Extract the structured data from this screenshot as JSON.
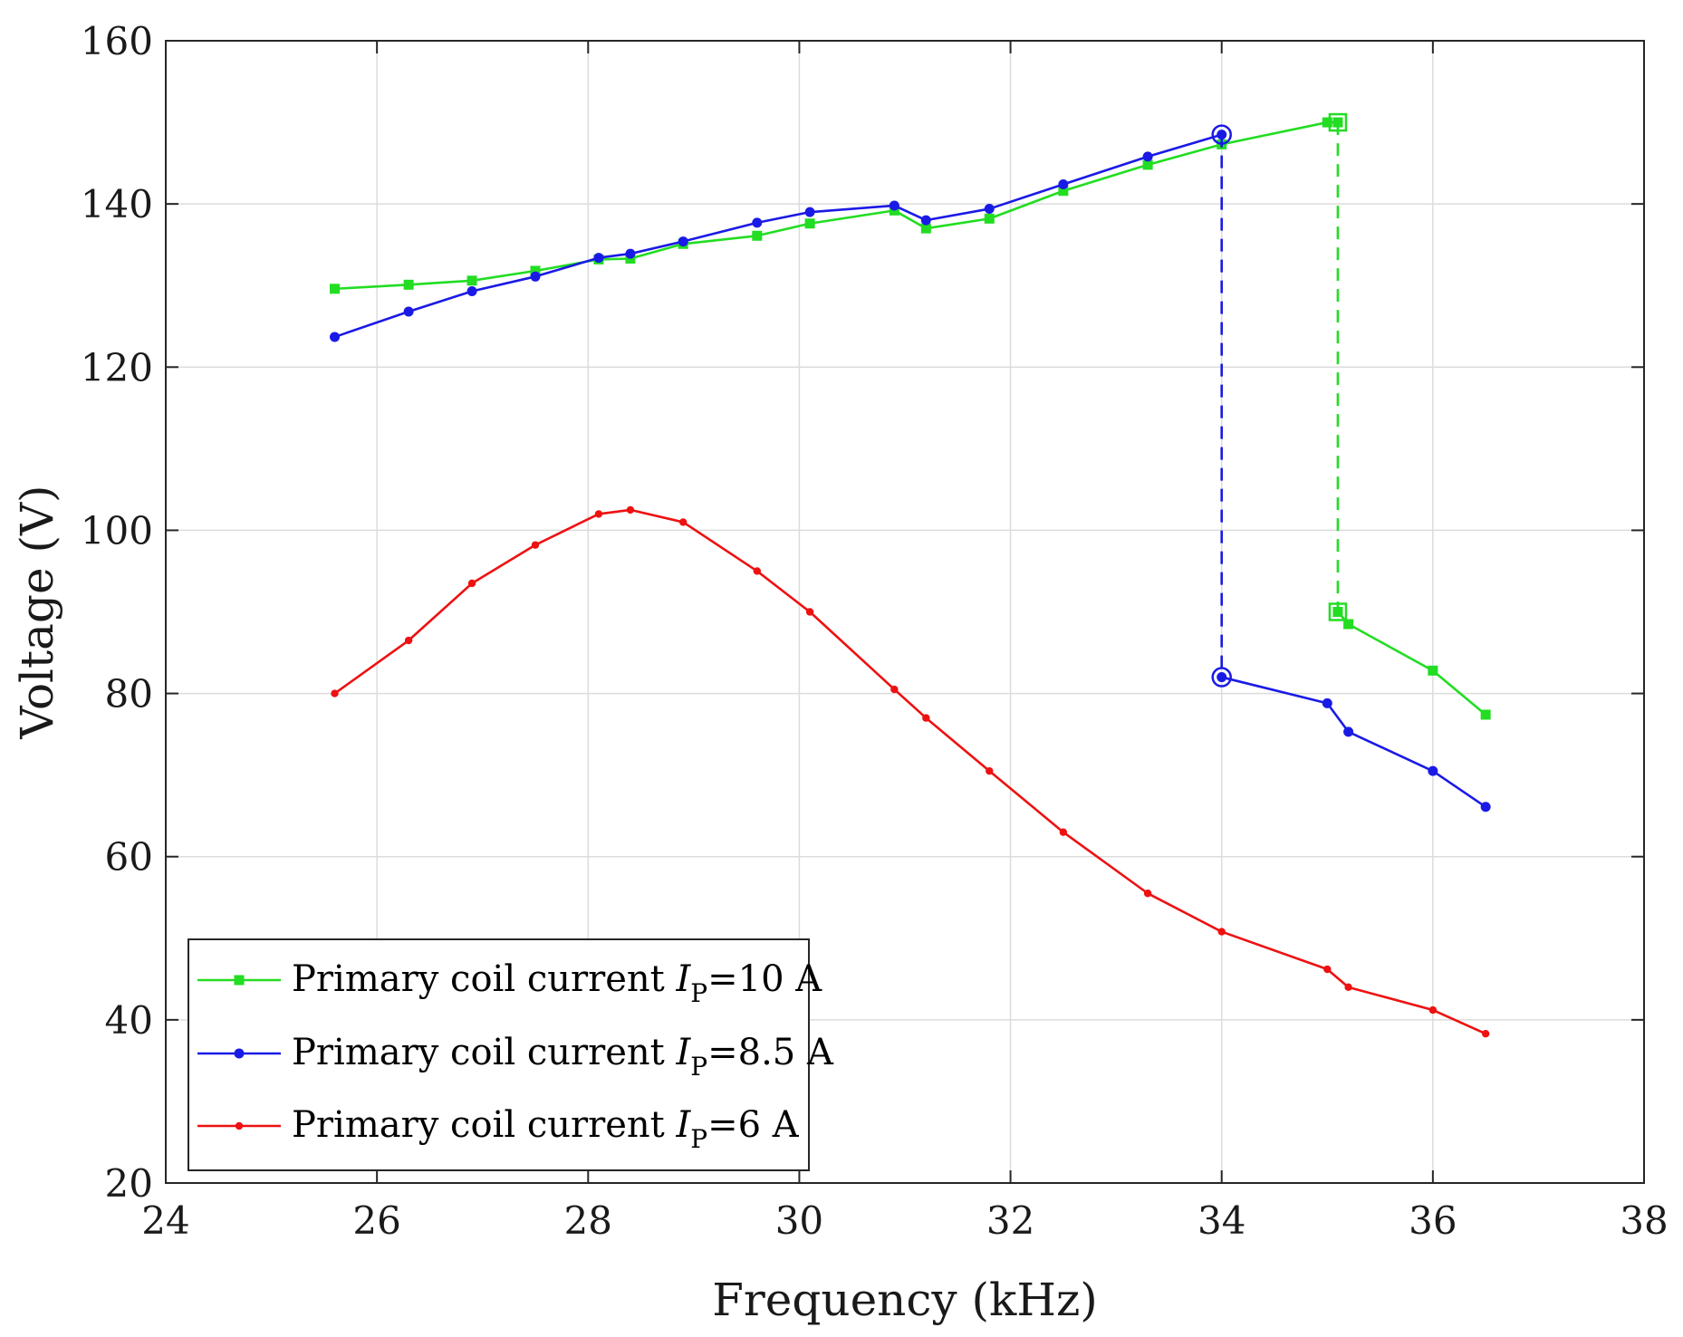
{
  "chart_data": {
    "type": "line",
    "title": "",
    "xlabel": "Frequency (kHz)",
    "ylabel": "Voltage (V)",
    "xlim": [
      24,
      38
    ],
    "ylim": [
      20,
      160
    ],
    "xticks": [
      24,
      26,
      28,
      30,
      32,
      34,
      36,
      38
    ],
    "yticks": [
      20,
      40,
      60,
      80,
      100,
      120,
      140,
      160
    ],
    "grid": true,
    "legend_position": "bottom-left",
    "series": [
      {
        "name": "Primary coil current IP=10 A",
        "legend_prefix": "Primary coil current ",
        "legend_symbol": "I",
        "legend_sub": "P",
        "legend_suffix": "=10 A",
        "color": "#22dd22",
        "marker": "square",
        "x": [
          25.6,
          26.3,
          26.9,
          27.5,
          28.1,
          28.4,
          28.9,
          29.6,
          30.1,
          30.9,
          31.2,
          31.8,
          32.5,
          33.3,
          34.0,
          35.0,
          35.1
        ],
        "y": [
          129.6,
          130.1,
          130.6,
          131.8,
          133.2,
          133.3,
          135.1,
          136.1,
          137.6,
          139.2,
          137.0,
          138.2,
          141.6,
          144.8,
          147.3,
          150.0,
          150.0
        ],
        "jump": {
          "x": 35.1,
          "from": 150.0,
          "to": 90.0
        },
        "after_x": [
          35.1,
          35.2,
          36.0,
          36.5
        ],
        "after_y": [
          90.0,
          88.5,
          82.8,
          77.4
        ],
        "highlight_points": [
          [
            35.1,
            150.0
          ],
          [
            35.1,
            90.0
          ]
        ]
      },
      {
        "name": "Primary coil current IP=8.5 A",
        "legend_prefix": "Primary coil current ",
        "legend_symbol": "I",
        "legend_sub": "P",
        "legend_suffix": "=8.5 A",
        "color": "#1a1ae6",
        "marker": "circle",
        "x": [
          25.6,
          26.3,
          26.9,
          27.5,
          28.1,
          28.4,
          28.9,
          29.6,
          30.1,
          30.9,
          31.2,
          31.8,
          32.5,
          33.3,
          34.0
        ],
        "y": [
          123.7,
          126.8,
          129.3,
          131.1,
          133.4,
          133.9,
          135.4,
          137.7,
          139.0,
          139.8,
          138.0,
          139.4,
          142.4,
          145.8,
          148.5
        ],
        "jump": {
          "x": 34.0,
          "from": 148.5,
          "to": 82.0
        },
        "after_x": [
          34.0,
          35.0,
          35.2,
          36.0,
          36.5
        ],
        "after_y": [
          82.0,
          78.8,
          75.3,
          70.5,
          66.1
        ],
        "highlight_points": [
          [
            34.0,
            148.5
          ],
          [
            34.0,
            82.0
          ]
        ]
      },
      {
        "name": "Primary coil current IP=6 A",
        "legend_prefix": "Primary coil current ",
        "legend_symbol": "I",
        "legend_sub": "P",
        "legend_suffix": "=6 A",
        "color": "#ee1111",
        "marker": "dot",
        "x": [
          25.6,
          26.3,
          26.9,
          27.5,
          28.1,
          28.4,
          28.9,
          29.6,
          30.1,
          30.9,
          31.2,
          31.8,
          32.5,
          33.3,
          34.0,
          35.0,
          35.2,
          36.0,
          36.5
        ],
        "y": [
          80.0,
          86.5,
          93.5,
          98.2,
          102.0,
          102.5,
          101.0,
          95.0,
          90.0,
          80.5,
          77.0,
          70.5,
          63.0,
          55.5,
          50.8,
          46.2,
          44.0,
          41.2,
          38.3
        ],
        "jump": null,
        "after_x": [],
        "after_y": [],
        "highlight_points": []
      }
    ]
  }
}
